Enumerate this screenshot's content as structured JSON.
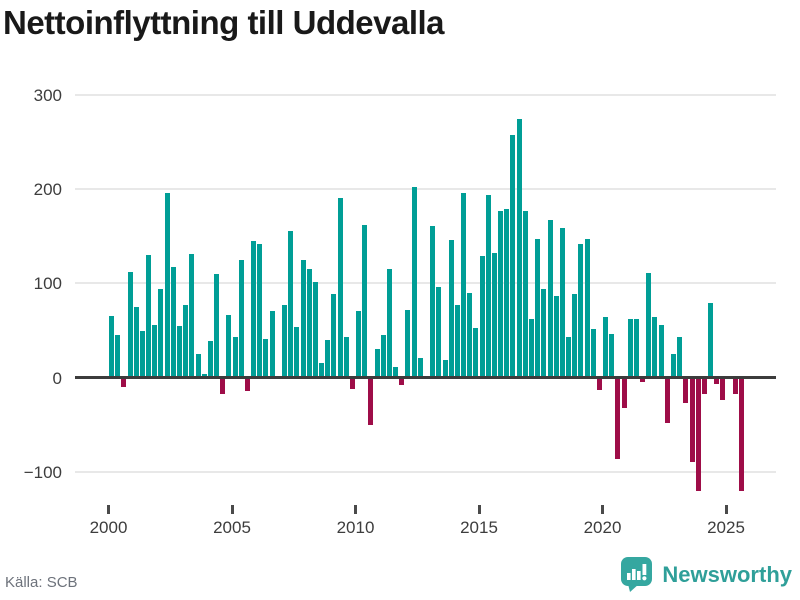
{
  "title": "Nettoinflyttning till Uddevalla",
  "source": "Källa: SCB",
  "logo": {
    "text": "Newsworthy",
    "icon": "newsworthy-speech-bubble-bar-chart-icon"
  },
  "colors": {
    "bar_positive": "#009e96",
    "bar_negative": "#9e0d48",
    "axis": "#3c3c3c",
    "gridline": "#e8e8e8",
    "logo_teal": "#2f9f99"
  },
  "chart_data": {
    "type": "bar",
    "title": "Nettoinflyttning till Uddevalla",
    "xlabel": "",
    "ylabel": "",
    "x_unit": "quarter",
    "period_start": "2000 Q1",
    "period_end": "2025 Q3",
    "grid": true,
    "legend": false,
    "ylim": [
      -130,
      310
    ],
    "ytick_values": [
      300,
      200,
      100,
      0,
      -100
    ],
    "ytick_labels": [
      "300",
      "200",
      "100",
      "0",
      "−100"
    ],
    "xtick_years": [
      2000,
      2005,
      2010,
      2015,
      2020,
      2025
    ],
    "series": [
      {
        "year": 2000,
        "quarters": [
          65,
          45,
          -10,
          112
        ]
      },
      {
        "year": 2001,
        "quarters": [
          75,
          49,
          130,
          56
        ]
      },
      {
        "year": 2002,
        "quarters": [
          94,
          196,
          117,
          55
        ]
      },
      {
        "year": 2003,
        "quarters": [
          77,
          131,
          25,
          4
        ]
      },
      {
        "year": 2004,
        "quarters": [
          39,
          110,
          -18,
          66
        ]
      },
      {
        "year": 2005,
        "quarters": [
          43,
          125,
          -14,
          145
        ]
      },
      {
        "year": 2006,
        "quarters": [
          141,
          41,
          71,
          2
        ]
      },
      {
        "year": 2007,
        "quarters": [
          77,
          155,
          54,
          125
        ]
      },
      {
        "year": 2008,
        "quarters": [
          115,
          101,
          15,
          40
        ]
      },
      {
        "year": 2009,
        "quarters": [
          88,
          190,
          43,
          -12
        ]
      },
      {
        "year": 2010,
        "quarters": [
          71,
          162,
          -50,
          30
        ]
      },
      {
        "year": 2011,
        "quarters": [
          45,
          115,
          11,
          -8
        ]
      },
      {
        "year": 2012,
        "quarters": [
          72,
          202,
          21,
          0
        ]
      },
      {
        "year": 2013,
        "quarters": [
          161,
          96,
          19,
          146
        ]
      },
      {
        "year": 2014,
        "quarters": [
          77,
          196,
          90,
          53
        ]
      },
      {
        "year": 2015,
        "quarters": [
          129,
          193,
          132,
          177
        ]
      },
      {
        "year": 2016,
        "quarters": [
          179,
          257,
          274,
          176
        ]
      },
      {
        "year": 2017,
        "quarters": [
          62,
          147,
          94,
          167
        ]
      },
      {
        "year": 2018,
        "quarters": [
          86,
          158,
          43,
          89
        ]
      },
      {
        "year": 2019,
        "quarters": [
          142,
          147,
          51,
          -13
        ]
      },
      {
        "year": 2020,
        "quarters": [
          64,
          46,
          -86,
          -32
        ]
      },
      {
        "year": 2021,
        "quarters": [
          62,
          62,
          -5,
          111
        ]
      },
      {
        "year": 2022,
        "quarters": [
          64,
          56,
          -48,
          25
        ]
      },
      {
        "year": 2023,
        "quarters": [
          43,
          -27,
          -90,
          -120
        ]
      },
      {
        "year": 2024,
        "quarters": [
          -18,
          79,
          -7,
          -24
        ]
      },
      {
        "year": 2025,
        "quarters": [
          0,
          -18,
          -120
        ]
      }
    ]
  }
}
